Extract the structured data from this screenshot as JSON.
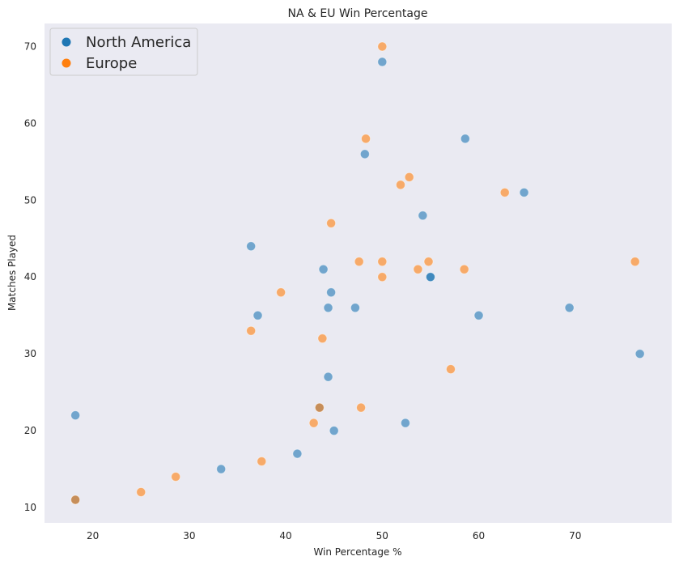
{
  "chart_data": {
    "type": "scatter",
    "title": "NA & EU Win Percentage",
    "xlabel": "Win Percentage %",
    "ylabel": "Matches Played",
    "xlim": [
      15,
      80
    ],
    "ylim": [
      8,
      73
    ],
    "xticks": [
      20,
      30,
      40,
      50,
      60,
      70
    ],
    "yticks": [
      10,
      20,
      30,
      40,
      50,
      60,
      70
    ],
    "grid": false,
    "legend_position": "upper-left",
    "series": [
      {
        "name": "North America",
        "color": "#1f77b4",
        "points": [
          {
            "x": 50.0,
            "y": 68
          },
          {
            "x": 58.6,
            "y": 58
          },
          {
            "x": 48.2,
            "y": 56
          },
          {
            "x": 64.7,
            "y": 51
          },
          {
            "x": 54.2,
            "y": 48
          },
          {
            "x": 36.4,
            "y": 44
          },
          {
            "x": 43.9,
            "y": 41
          },
          {
            "x": 55.0,
            "y": 40
          },
          {
            "x": 55.0,
            "y": 40
          },
          {
            "x": 44.7,
            "y": 38
          },
          {
            "x": 37.1,
            "y": 35
          },
          {
            "x": 44.4,
            "y": 36
          },
          {
            "x": 47.2,
            "y": 36
          },
          {
            "x": 60.0,
            "y": 35
          },
          {
            "x": 69.4,
            "y": 36
          },
          {
            "x": 76.7,
            "y": 30
          },
          {
            "x": 44.4,
            "y": 27
          },
          {
            "x": 43.5,
            "y": 23
          },
          {
            "x": 18.2,
            "y": 22
          },
          {
            "x": 52.4,
            "y": 21
          },
          {
            "x": 45.0,
            "y": 20
          },
          {
            "x": 41.2,
            "y": 17
          },
          {
            "x": 33.3,
            "y": 15
          },
          {
            "x": 18.2,
            "y": 11
          }
        ]
      },
      {
        "name": "Europe",
        "color": "#ff7f0e",
        "points": [
          {
            "x": 50.0,
            "y": 70
          },
          {
            "x": 48.3,
            "y": 58
          },
          {
            "x": 52.8,
            "y": 53
          },
          {
            "x": 51.9,
            "y": 52
          },
          {
            "x": 62.7,
            "y": 51
          },
          {
            "x": 44.7,
            "y": 47
          },
          {
            "x": 47.6,
            "y": 42
          },
          {
            "x": 50.0,
            "y": 42
          },
          {
            "x": 54.8,
            "y": 42
          },
          {
            "x": 76.2,
            "y": 42
          },
          {
            "x": 53.7,
            "y": 41
          },
          {
            "x": 58.5,
            "y": 41
          },
          {
            "x": 50.0,
            "y": 40
          },
          {
            "x": 39.5,
            "y": 38
          },
          {
            "x": 36.4,
            "y": 33
          },
          {
            "x": 43.8,
            "y": 32
          },
          {
            "x": 57.1,
            "y": 28
          },
          {
            "x": 43.5,
            "y": 23
          },
          {
            "x": 47.8,
            "y": 23
          },
          {
            "x": 42.9,
            "y": 21
          },
          {
            "x": 37.5,
            "y": 16
          },
          {
            "x": 28.6,
            "y": 14
          },
          {
            "x": 25.0,
            "y": 12
          },
          {
            "x": 18.2,
            "y": 11
          }
        ]
      }
    ]
  }
}
